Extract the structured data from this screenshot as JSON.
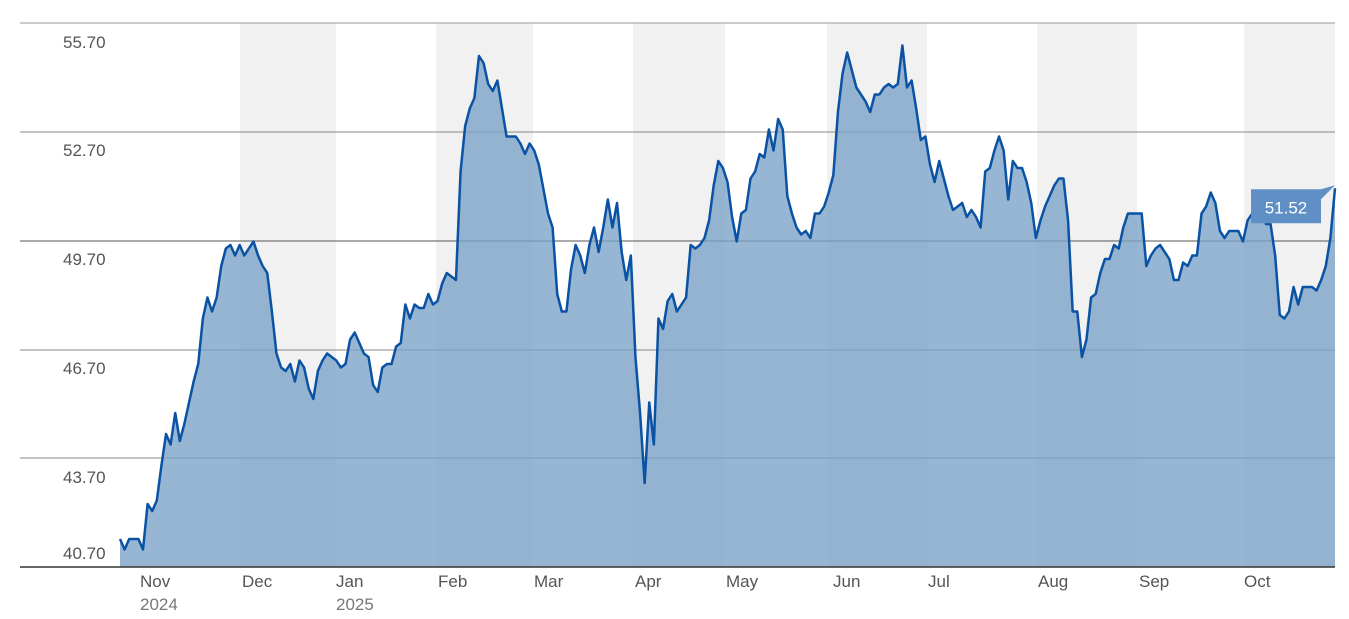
{
  "chart_data": {
    "type": "area",
    "y_ticks": [
      "55.70",
      "52.70",
      "49.70",
      "46.70",
      "43.70",
      "40.70"
    ],
    "ylim": [
      40.7,
      55.7
    ],
    "months": [
      {
        "label": "Nov",
        "year": "2024",
        "shaded": false
      },
      {
        "label": "Dec",
        "year": "",
        "shaded": true
      },
      {
        "label": "Jan",
        "year": "2025",
        "shaded": false
      },
      {
        "label": "Feb",
        "year": "",
        "shaded": true
      },
      {
        "label": "Mar",
        "year": "",
        "shaded": false
      },
      {
        "label": "Apr",
        "year": "",
        "shaded": true
      },
      {
        "label": "May",
        "year": "",
        "shaded": false
      },
      {
        "label": "Jun",
        "year": "",
        "shaded": true
      },
      {
        "label": "Jul",
        "year": "",
        "shaded": false
      },
      {
        "label": "Aug",
        "year": "",
        "shaded": true
      },
      {
        "label": "Sep",
        "year": "",
        "shaded": false
      },
      {
        "label": "Oct",
        "year": "",
        "shaded": true
      }
    ],
    "series": [
      {
        "values": [
          41.5,
          41.2,
          41.5,
          41.5,
          41.5,
          41.2,
          42.5,
          42.3,
          42.6,
          43.6,
          44.5,
          44.2,
          45.1,
          44.3,
          44.8,
          45.4,
          46.0,
          46.5,
          47.8,
          48.4,
          48.0,
          48.4,
          49.3,
          49.8,
          49.9,
          49.6,
          49.9,
          49.6,
          49.8,
          50.0,
          49.6,
          49.3,
          49.1,
          48.0,
          46.8,
          46.4,
          46.3,
          46.5,
          46.0,
          46.6,
          46.4,
          45.8,
          45.5,
          46.3,
          46.6,
          46.8,
          46.7,
          46.6,
          46.4,
          46.5,
          47.2,
          47.4,
          47.1,
          46.8,
          46.7,
          45.9,
          45.7,
          46.4,
          46.5,
          46.5,
          47.0,
          47.1,
          48.2,
          47.8,
          48.2,
          48.1,
          48.1,
          48.5,
          48.2,
          48.3,
          48.8,
          49.1,
          49.0,
          48.9,
          52.0,
          53.3,
          53.8,
          54.1,
          55.3,
          55.1,
          54.5,
          54.3,
          54.6,
          53.8,
          53.0,
          53.0,
          53.0,
          52.8,
          52.5,
          52.8,
          52.6,
          52.2,
          51.5,
          50.8,
          50.4,
          48.5,
          48.0,
          48.0,
          49.2,
          49.9,
          49.6,
          49.1,
          49.9,
          50.4,
          49.7,
          50.4,
          51.2,
          50.4,
          51.1,
          49.7,
          48.9,
          49.6,
          46.7,
          45.1,
          43.1,
          45.4,
          44.2,
          47.8,
          47.5,
          48.3,
          48.5,
          48.0,
          48.2,
          48.4,
          49.9,
          49.8,
          49.9,
          50.1,
          50.6,
          51.6,
          52.3,
          52.1,
          51.7,
          50.7,
          50.0,
          50.8,
          50.9,
          51.8,
          52.0,
          52.5,
          52.4,
          53.2,
          52.6,
          53.5,
          53.2,
          51.3,
          50.8,
          50.4,
          50.2,
          50.3,
          50.1,
          50.8,
          50.8,
          51.0,
          51.4,
          51.9,
          53.7,
          54.8,
          55.4,
          54.9,
          54.4,
          54.2,
          54.0,
          53.7,
          54.2,
          54.2,
          54.4,
          54.5,
          54.4,
          54.5,
          55.6,
          54.4,
          54.6,
          53.8,
          52.9,
          53.0,
          52.2,
          51.7,
          52.3,
          51.8,
          51.3,
          50.9,
          51.0,
          51.1,
          50.7,
          50.9,
          50.7,
          50.4,
          52.0,
          52.1,
          52.6,
          53.0,
          52.6,
          51.2,
          52.3,
          52.1,
          52.1,
          51.7,
          51.1,
          50.1,
          50.6,
          51.0,
          51.3,
          51.6,
          51.8,
          51.8,
          50.6,
          48.0,
          48.0,
          46.7,
          47.2,
          48.4,
          48.5,
          49.1,
          49.5,
          49.5,
          49.9,
          49.8,
          50.4,
          50.8,
          50.8,
          50.8,
          50.8,
          49.3,
          49.6,
          49.8,
          49.9,
          49.7,
          49.5,
          48.9,
          48.9,
          49.4,
          49.3,
          49.6,
          49.6,
          50.8,
          51.0,
          51.4,
          51.1,
          50.3,
          50.1,
          50.3,
          50.3,
          50.3,
          50.0,
          50.6,
          50.8,
          51.3,
          50.9,
          50.5,
          50.5,
          49.6,
          47.9,
          47.8,
          48.0,
          48.7,
          48.2,
          48.7,
          48.7,
          48.7,
          48.6,
          48.9,
          49.3,
          50.1,
          51.52
        ],
        "color": "#0a52a4",
        "fill": "#7aa1c6"
      }
    ],
    "last_value_label": "51.52",
    "grid": true,
    "background_bands": "alternating months"
  }
}
